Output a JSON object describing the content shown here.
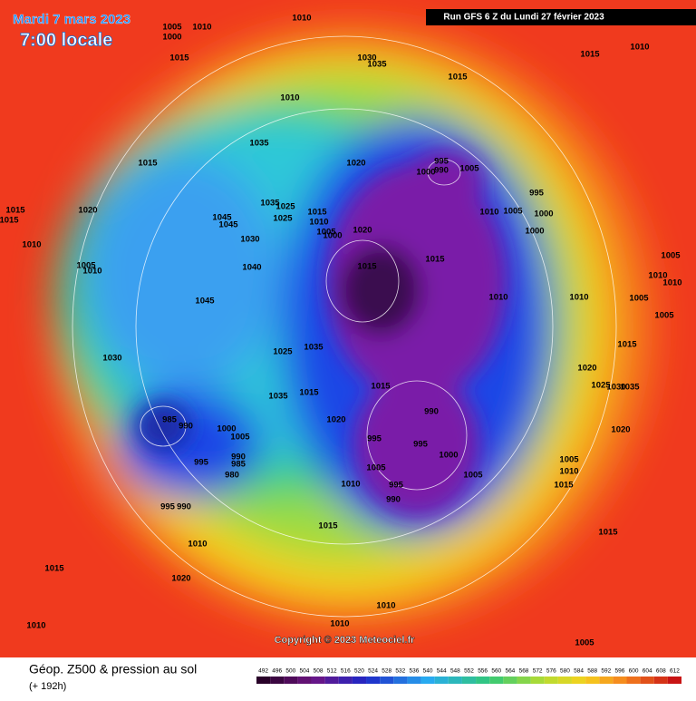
{
  "header": {
    "date": "Mardi 7 mars 2023",
    "time": "7:00 locale",
    "run": "Run GFS 6 Z du Lundi 27 février 2023"
  },
  "copyright": "Copyright © 2023 Meteociel.fr",
  "footer": {
    "title": "Géop. Z500 & pression au sol",
    "lead": "(+ 192h)"
  },
  "legend": {
    "values": [
      492,
      496,
      500,
      504,
      508,
      512,
      516,
      520,
      524,
      528,
      532,
      536,
      540,
      544,
      548,
      552,
      556,
      560,
      564,
      568,
      572,
      576,
      580,
      584,
      588,
      592,
      596,
      600,
      604,
      608,
      612
    ]
  },
  "isobar_labels": [
    1005,
    1000,
    1010,
    1010,
    1030,
    1035,
    1015,
    1015,
    1010,
    1015,
    1010,
    1035,
    1015,
    1020,
    995,
    1000,
    990,
    1005,
    1015,
    1015,
    1020,
    1045,
    1045,
    1035,
    1025,
    1025,
    1015,
    1010,
    1005,
    1000,
    1020,
    1010,
    1005,
    995,
    1000,
    1000,
    1010,
    1030,
    1005,
    1010,
    1040,
    1015,
    1015,
    1005,
    1010,
    1010,
    1010,
    1010,
    1005,
    1045,
    1005,
    1035,
    1025,
    1015,
    1030,
    1015,
    1020,
    1025,
    1030,
    1035,
    1035,
    1015,
    990,
    1020,
    985,
    990,
    1000,
    1005,
    995,
    995,
    1000,
    1020,
    1005,
    1010,
    990,
    985,
    980,
    995,
    1005,
    1005,
    995,
    1010,
    1015,
    990,
    995,
    990,
    1015,
    1015,
    1010,
    1015,
    1020,
    1010,
    1010,
    1010,
    1005
  ]
}
